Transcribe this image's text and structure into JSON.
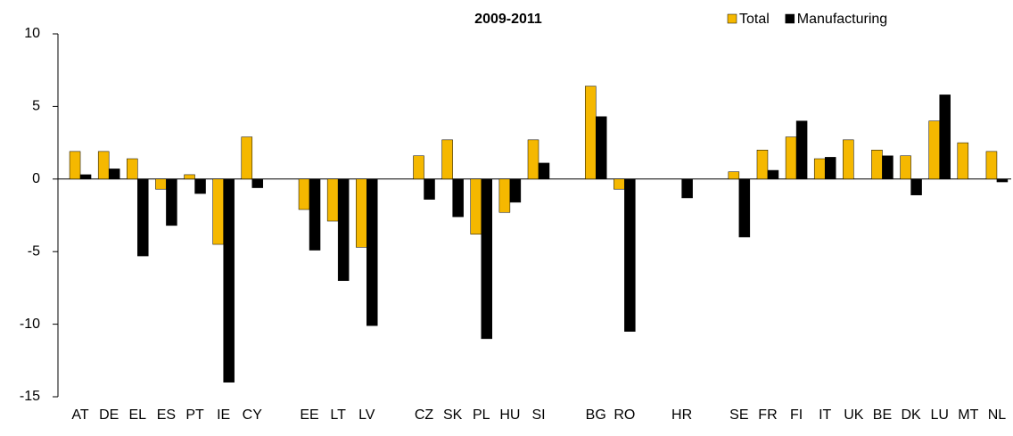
{
  "chart_data": {
    "type": "bar",
    "title": "2009-2011",
    "categories": [
      "AT",
      "DE",
      "EL",
      "ES",
      "PT",
      "IE",
      "CY",
      null,
      "EE",
      "LT",
      "LV",
      null,
      "CZ",
      "SK",
      "PL",
      "HU",
      "SI",
      null,
      "BG",
      "RO",
      null,
      "HR",
      null,
      "SE",
      "FR",
      "FI",
      "IT",
      "UK",
      "BE",
      "DK",
      "LU",
      "MT",
      "NL"
    ],
    "series": [
      {
        "name": "Total",
        "color": "#f5b800",
        "values": [
          1.9,
          1.9,
          1.4,
          -0.7,
          0.3,
          -4.5,
          2.9,
          null,
          -2.1,
          -2.9,
          -4.7,
          null,
          1.6,
          2.7,
          -3.8,
          -2.3,
          2.7,
          null,
          6.4,
          -0.7,
          null,
          null,
          null,
          0.5,
          2.0,
          2.9,
          1.4,
          2.7,
          2.0,
          1.6,
          4.0,
          2.5,
          1.9
        ]
      },
      {
        "name": "Manufacturing",
        "color": "#000000",
        "values": [
          0.3,
          0.7,
          -5.3,
          -3.2,
          -1.0,
          -14.0,
          -0.6,
          null,
          -4.9,
          -7.0,
          -10.1,
          null,
          -1.4,
          -2.6,
          -11.0,
          -1.6,
          1.1,
          null,
          4.3,
          -10.5,
          null,
          -1.3,
          null,
          -4.0,
          0.6,
          4.0,
          1.5,
          null,
          1.6,
          -1.1,
          5.8,
          null,
          -0.2
        ]
      }
    ],
    "ylim": [
      -15,
      10
    ],
    "yticks": [
      -15,
      -10,
      -5,
      0,
      5,
      10
    ],
    "grid": false,
    "legend": "top-right"
  }
}
